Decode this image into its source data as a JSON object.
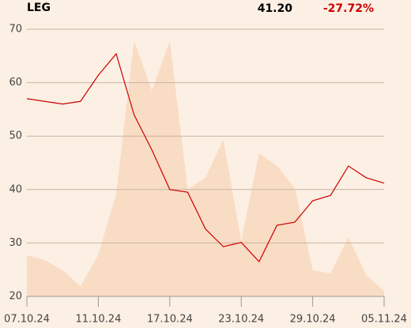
{
  "header": {
    "symbol": "LEG",
    "price": "41.20",
    "change": "-27.72%"
  },
  "chart_data": {
    "type": "line",
    "categories": [
      "07.10.24",
      null,
      null,
      null,
      "11.10.24",
      null,
      null,
      null,
      "17.10.24",
      null,
      null,
      null,
      "23.10.24",
      null,
      null,
      null,
      "29.10.24",
      null,
      null,
      null,
      "05.11.24"
    ],
    "series": [
      {
        "kind": "area",
        "color": "#f9dcc4",
        "values": [
          27.7,
          26.8,
          24.9,
          21.9,
          27.8,
          39.2,
          67.8,
          58.5,
          67.8,
          40.0,
          42.2,
          49.3,
          30.4,
          46.8,
          44.4,
          40.3,
          24.9,
          24.3,
          31.1,
          24.0,
          21.0
        ]
      },
      {
        "kind": "line",
        "color": "#cc0000",
        "values": [
          57.0,
          56.5,
          56.0,
          56.5,
          61.4,
          65.4,
          54.0,
          47.4,
          40.0,
          39.5,
          32.6,
          29.3,
          30.1,
          26.5,
          33.3,
          33.9,
          37.9,
          38.9,
          44.4,
          42.2,
          41.2
        ]
      }
    ],
    "ylim": [
      20,
      70
    ],
    "yticks": [
      20,
      30,
      40,
      50,
      60,
      70
    ],
    "grid": true
  }
}
